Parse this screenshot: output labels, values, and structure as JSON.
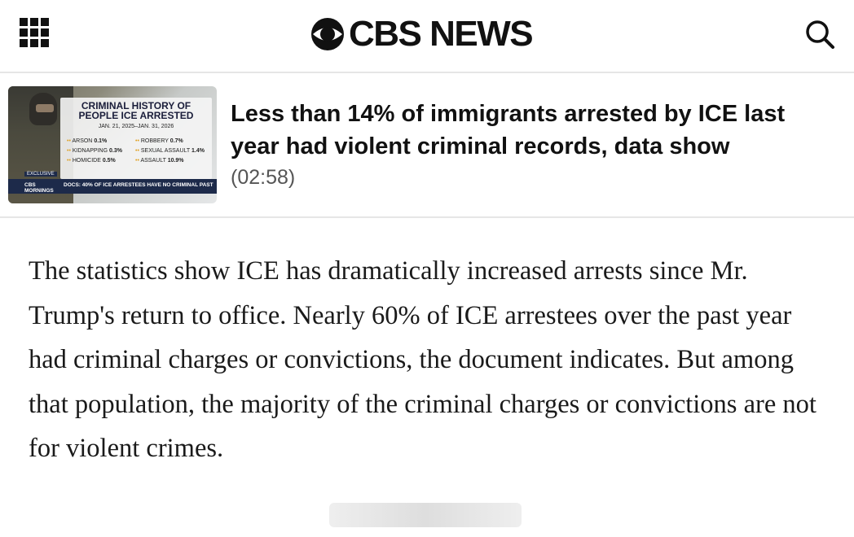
{
  "header": {
    "brand": "CBS NEWS",
    "menu_icon": "grid-menu-icon",
    "search_icon": "search-icon"
  },
  "video": {
    "title": "Less than 14% of immigrants arrested by ICE last year had violent criminal records, data show",
    "duration": "(02:58)",
    "thumbnail": {
      "heading": "CRIMINAL HISTORY OF PEOPLE ICE ARRESTED",
      "dates": "JAN. 21, 2025–JAN. 31, 2026",
      "stats": [
        {
          "label": "ARSON",
          "value": "0.1%"
        },
        {
          "label": "KIDNAPPING",
          "value": "0.3%"
        },
        {
          "label": "HOMICIDE",
          "value": "0.5%"
        },
        {
          "label": "ROBBERY",
          "value": "0.7%"
        },
        {
          "label": "SEXUAL ASSAULT",
          "value": "1.4%"
        },
        {
          "label": "ASSAULT",
          "value": "10.9%"
        }
      ],
      "badge": "EXCLUSIVE",
      "show": "CBS MORNINGS",
      "banner": "DOCS: 40% OF ICE ARRESTEES HAVE NO CRIMINAL PAST"
    }
  },
  "article": {
    "paragraph": "The statistics show ICE has dramatically increased arrests since Mr. Trump's return to office. Nearly 60% of ICE arrestees over the past year had criminal charges or convictions, the document indicates. But among that population, the majority of the criminal charges or convictions are not for violent crimes."
  }
}
